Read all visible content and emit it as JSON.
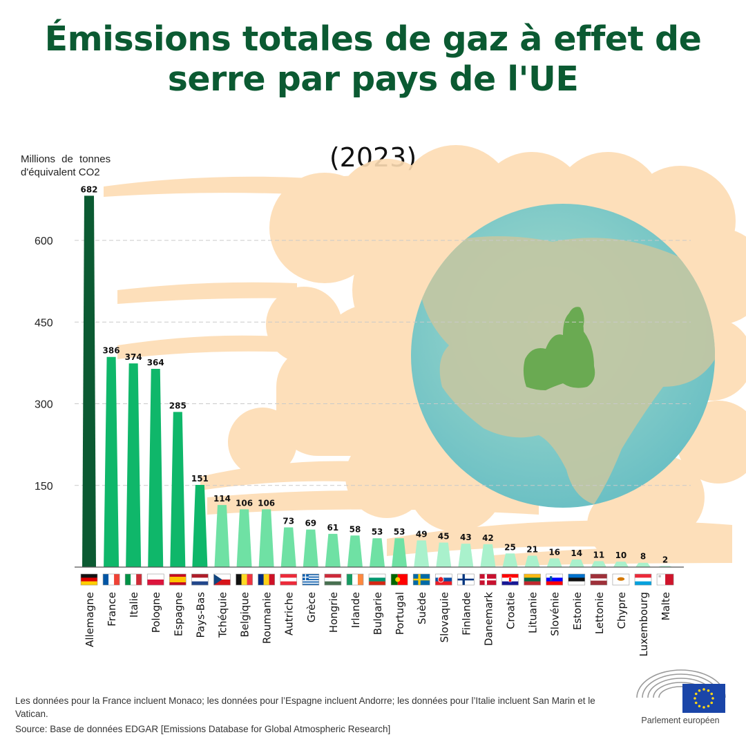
{
  "title": "Émissions totales de gaz à effet de serre par pays de l'UE",
  "year_label": "(2023)",
  "unit_label": [
    "Millions de tonnes",
    "d'équivalent CO2"
  ],
  "footnote": "Les données pour la France incluent Monaco; les données pour l’Espagne incluent Andorre; les données pour l’Italie incluent San Marin et le Vatican.",
  "source": "Source: Base de données EDGAR [Emissions Database for Global Atmospheric Research]",
  "logo_text": "Parlement européen",
  "colors": {
    "title": "#0b5a32",
    "tier_top": "#0b5a32",
    "tier_high": "#0fb76a",
    "tier_mid": "#6fe1a4",
    "tier_low": "#a9f1cc",
    "smoke": "#fddcb3",
    "globe": "#8cd1c6",
    "europe": "#6aaa52",
    "eu_blue": "#1a45a8",
    "eu_gold": "#ffd616"
  },
  "chart_data": {
    "type": "bar",
    "ylim": [
      0,
      700
    ],
    "yticks": [
      150,
      300,
      450,
      600
    ],
    "grid": true,
    "categories": [
      "Allemagne",
      "France",
      "Italie",
      "Pologne",
      "Espagne",
      "Pays-Bas",
      "Tchéquie",
      "Belgique",
      "Roumanie",
      "Autriche",
      "Grèce",
      "Hongrie",
      "Irlande",
      "Bulgarie",
      "Portugal",
      "Suède",
      "Slovaquie",
      "Finlande",
      "Danemark",
      "Croatie",
      "Lituanie",
      "Slovénie",
      "Estonie",
      "Lettonie",
      "Chypre",
      "Luxembourg",
      "Malte"
    ],
    "values": [
      682,
      386,
      374,
      364,
      285,
      151,
      114,
      106,
      106,
      73,
      69,
      61,
      58,
      53,
      53,
      49,
      45,
      43,
      42,
      25,
      21,
      16,
      14,
      11,
      10,
      8,
      2
    ],
    "flags": [
      "flag-germany",
      "flag-france",
      "flag-italy",
      "flag-poland",
      "flag-spain",
      "flag-netherlands",
      "flag-czechia",
      "flag-belgium",
      "flag-romania",
      "flag-austria",
      "flag-greece",
      "flag-hungary",
      "flag-ireland",
      "flag-bulgaria",
      "flag-portugal",
      "flag-sweden",
      "flag-slovakia",
      "flag-finland",
      "flag-denmark",
      "flag-croatia",
      "flag-lithuania",
      "flag-slovenia",
      "flag-estonia",
      "flag-latvia",
      "flag-cyprus",
      "flag-luxembourg",
      "flag-malta"
    ]
  }
}
